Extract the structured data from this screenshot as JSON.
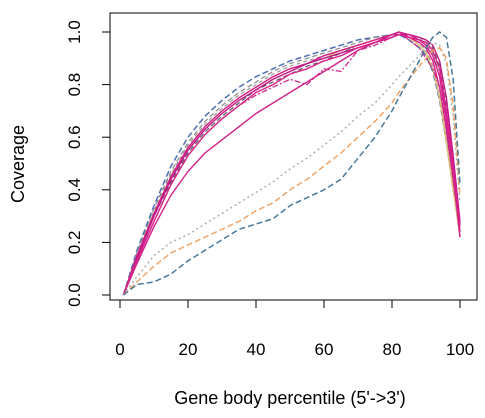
{
  "chart_data": {
    "type": "line",
    "title": "",
    "xlabel": "Gene body percentile (5'->3')",
    "ylabel": "Coverage",
    "xlim": [
      0,
      100
    ],
    "ylim": [
      0,
      1
    ],
    "xticks": [
      "0",
      "20",
      "40",
      "60",
      "80",
      "100"
    ],
    "yticks": [
      "0.0",
      "0.2",
      "0.4",
      "0.6",
      "0.8",
      "1.0"
    ],
    "grid": false,
    "legend": "none",
    "x": [
      1,
      5,
      10,
      15,
      20,
      25,
      30,
      35,
      40,
      45,
      50,
      55,
      60,
      65,
      70,
      75,
      80,
      82,
      85,
      88,
      90,
      92,
      94,
      96,
      98,
      100
    ],
    "series": [
      {
        "color": "#4e6fb5",
        "dash": "6,3",
        "width": 1.5,
        "values": [
          0.0,
          0.17,
          0.34,
          0.49,
          0.6,
          0.68,
          0.74,
          0.79,
          0.83,
          0.86,
          0.89,
          0.91,
          0.93,
          0.95,
          0.97,
          0.98,
          0.99,
          0.99,
          0.97,
          0.94,
          0.91,
          0.85,
          0.74,
          0.58,
          0.4,
          0.24
        ]
      },
      {
        "color": "#8a8a8a",
        "dash": "5,3",
        "width": 1.2,
        "values": [
          0.0,
          0.16,
          0.33,
          0.47,
          0.58,
          0.66,
          0.72,
          0.77,
          0.81,
          0.85,
          0.88,
          0.9,
          0.92,
          0.94,
          0.96,
          0.98,
          0.99,
          1.0,
          0.98,
          0.95,
          0.92,
          0.86,
          0.75,
          0.59,
          0.4,
          0.22
        ]
      },
      {
        "color": "#9c9c9c",
        "dash": "4,3",
        "width": 1.2,
        "values": [
          0.0,
          0.15,
          0.32,
          0.46,
          0.57,
          0.65,
          0.71,
          0.76,
          0.8,
          0.84,
          0.87,
          0.89,
          0.91,
          0.93,
          0.95,
          0.97,
          0.99,
          1.0,
          0.98,
          0.96,
          0.93,
          0.87,
          0.76,
          0.6,
          0.41,
          0.23
        ]
      },
      {
        "color": "#e0c070",
        "dash": "",
        "width": 1.3,
        "values": [
          0.0,
          0.15,
          0.31,
          0.45,
          0.56,
          0.64,
          0.7,
          0.75,
          0.79,
          0.83,
          0.86,
          0.88,
          0.9,
          0.93,
          0.95,
          0.97,
          0.99,
          1.0,
          0.98,
          0.95,
          0.92,
          0.86,
          0.75,
          0.58,
          0.4,
          0.22
        ]
      },
      {
        "color": "#7a9a7a",
        "dash": "6,2,2,2",
        "width": 1.2,
        "values": [
          0.0,
          0.14,
          0.3,
          0.44,
          0.55,
          0.63,
          0.69,
          0.74,
          0.78,
          0.82,
          0.85,
          0.88,
          0.9,
          0.92,
          0.95,
          0.97,
          0.99,
          1.0,
          0.99,
          0.98,
          0.96,
          0.92,
          0.84,
          0.68,
          0.48,
          0.26
        ]
      },
      {
        "color": "#5a5a5a",
        "dash": "5,3",
        "width": 1.2,
        "values": [
          0.0,
          0.14,
          0.3,
          0.43,
          0.54,
          0.62,
          0.68,
          0.73,
          0.78,
          0.81,
          0.84,
          0.87,
          0.89,
          0.92,
          0.94,
          0.96,
          0.98,
          0.99,
          0.99,
          0.98,
          0.97,
          0.94,
          0.87,
          0.72,
          0.5,
          0.27
        ]
      },
      {
        "color": "#d81b85",
        "dash": "",
        "width": 1.4,
        "values": [
          0.0,
          0.15,
          0.31,
          0.45,
          0.56,
          0.64,
          0.7,
          0.75,
          0.79,
          0.83,
          0.86,
          0.88,
          0.91,
          0.93,
          0.95,
          0.97,
          0.99,
          1.0,
          0.98,
          0.96,
          0.94,
          0.89,
          0.79,
          0.63,
          0.44,
          0.24
        ]
      },
      {
        "color": "#c0188a",
        "dash": "",
        "width": 1.4,
        "values": [
          0.0,
          0.14,
          0.3,
          0.44,
          0.55,
          0.63,
          0.69,
          0.74,
          0.78,
          0.82,
          0.85,
          0.88,
          0.9,
          0.92,
          0.94,
          0.96,
          0.98,
          0.99,
          0.99,
          0.98,
          0.97,
          0.95,
          0.89,
          0.75,
          0.53,
          0.28
        ]
      },
      {
        "color": "#e0208a",
        "dash": "",
        "width": 1.4,
        "values": [
          0.0,
          0.13,
          0.28,
          0.42,
          0.53,
          0.61,
          0.67,
          0.72,
          0.77,
          0.8,
          0.84,
          0.86,
          0.89,
          0.91,
          0.94,
          0.96,
          0.98,
          0.99,
          0.98,
          0.97,
          0.96,
          0.93,
          0.86,
          0.7,
          0.49,
          0.26
        ]
      },
      {
        "color": "#d0208a",
        "dash": "",
        "width": 1.4,
        "values": [
          0.0,
          0.12,
          0.26,
          0.38,
          0.47,
          0.54,
          0.59,
          0.64,
          0.69,
          0.73,
          0.77,
          0.81,
          0.85,
          0.89,
          0.93,
          0.96,
          0.99,
          1.0,
          0.99,
          0.97,
          0.95,
          0.91,
          0.83,
          0.67,
          0.46,
          0.22
        ]
      },
      {
        "color": "#d02a8a",
        "dash": "6,2,2,2",
        "width": 1.3,
        "values": [
          0.0,
          0.13,
          0.28,
          0.42,
          0.53,
          0.61,
          0.67,
          0.72,
          0.76,
          0.79,
          0.82,
          0.8,
          0.86,
          0.85,
          0.93,
          0.95,
          0.98,
          1.0,
          0.97,
          0.94,
          0.9,
          0.86,
          0.79,
          0.66,
          0.45,
          0.22
        ]
      },
      {
        "color": "#a9a9a9",
        "dash": "2,3",
        "width": 1.4,
        "values": [
          0.0,
          0.07,
          0.15,
          0.2,
          0.23,
          0.27,
          0.31,
          0.35,
          0.39,
          0.43,
          0.48,
          0.52,
          0.57,
          0.62,
          0.68,
          0.73,
          0.8,
          0.83,
          0.87,
          0.91,
          0.94,
          0.96,
          0.95,
          0.88,
          0.68,
          0.35
        ]
      },
      {
        "color": "#f0a060",
        "dash": "6,3",
        "width": 1.4,
        "values": [
          0.0,
          0.05,
          0.11,
          0.16,
          0.19,
          0.22,
          0.25,
          0.28,
          0.32,
          0.35,
          0.4,
          0.44,
          0.49,
          0.54,
          0.6,
          0.66,
          0.73,
          0.77,
          0.82,
          0.87,
          0.9,
          0.93,
          0.94,
          0.9,
          0.72,
          0.38
        ]
      },
      {
        "color": "#4a7a9a",
        "dash": "6,3",
        "width": 1.5,
        "values": [
          0.0,
          0.04,
          0.05,
          0.08,
          0.13,
          0.17,
          0.21,
          0.25,
          0.27,
          0.29,
          0.34,
          0.37,
          0.4,
          0.44,
          0.52,
          0.6,
          0.7,
          0.75,
          0.82,
          0.89,
          0.94,
          0.98,
          1.0,
          0.98,
          0.82,
          0.42
        ]
      }
    ]
  }
}
